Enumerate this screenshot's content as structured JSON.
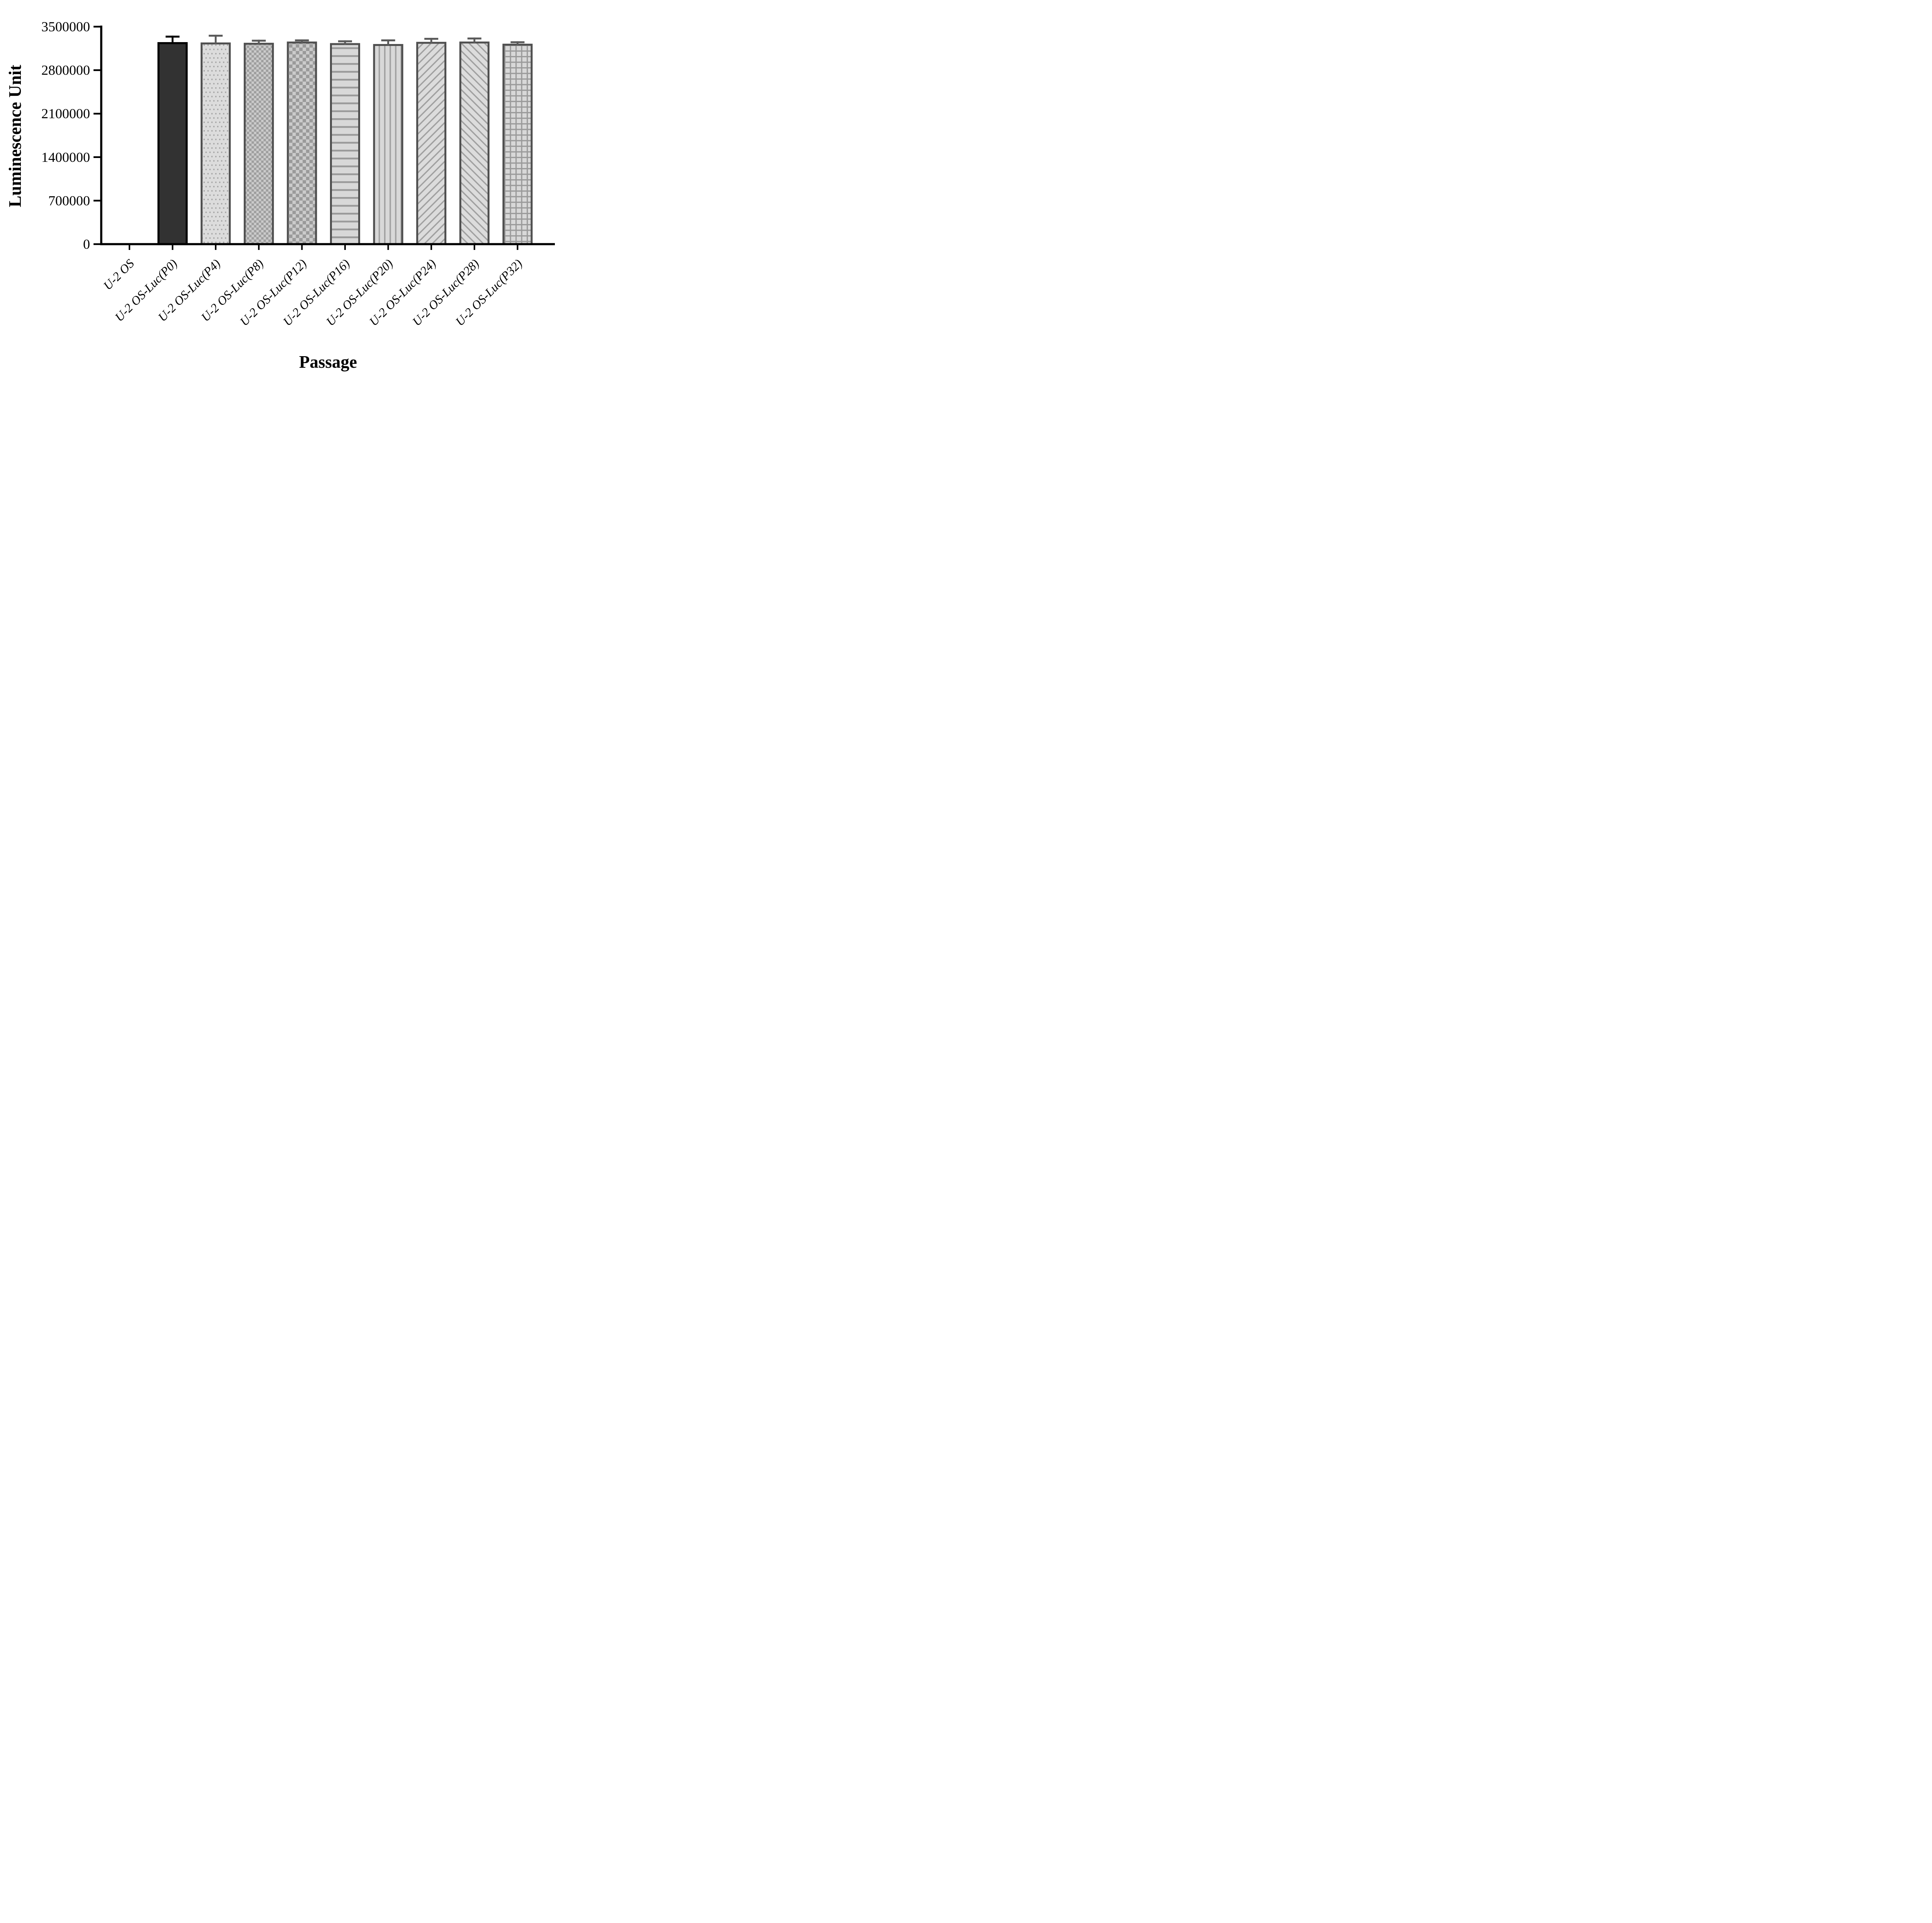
{
  "figure": {
    "background": "#ffffff",
    "description": "Bar chart of luciferase luminescence stability across cell passages"
  },
  "chart_data": {
    "type": "bar",
    "title": "",
    "xlabel": "Passage",
    "ylabel": "Luminescence Unit",
    "categories": [
      "U-2 OS",
      "U-2 OS-Luc(P0)",
      "U-2 OS-Luc(P4)",
      "U-2 OS-Luc(P8)",
      "U-2 OS-Luc(P12)",
      "U-2 OS-Luc(P16)",
      "U-2 OS-Luc(P20)",
      "U-2 OS-Luc(P24)",
      "U-2 OS-Luc(P28)",
      "U-2 OS-Luc(P32)"
    ],
    "values": [
      0,
      3235000,
      3230000,
      3225000,
      3245000,
      3220000,
      3205000,
      3240000,
      3245000,
      3210000
    ],
    "errors_upper": [
      0,
      120000,
      140000,
      65000,
      50000,
      60000,
      90000,
      80000,
      80000,
      55000
    ],
    "bar_patterns": [
      "none",
      "solid-dark",
      "dots",
      "checker-fine",
      "checker-coarse",
      "horizontal-lines",
      "vertical-lines",
      "diagonal-up",
      "diagonal-down",
      "grid"
    ],
    "ytick_labels": [
      "0",
      "700000",
      "1400000",
      "2100000",
      "2800000",
      "3500000"
    ],
    "yticks": [
      0,
      700000,
      1400000,
      2100000,
      2800000,
      3500000
    ],
    "ylim": [
      0,
      3500000
    ],
    "grid": "off",
    "legend": "none",
    "colors": {
      "axis": "#000000",
      "solid_bar_fill": "#323232",
      "solid_bar_outline": "#000000",
      "pattern_bar_outline": "#4f4f4f",
      "pattern_background": "#dcdcdc",
      "pattern_foreground": "#a0a0a0",
      "error_bar_dark": "#000000",
      "error_bar_gray": "#5a5a5a"
    }
  }
}
